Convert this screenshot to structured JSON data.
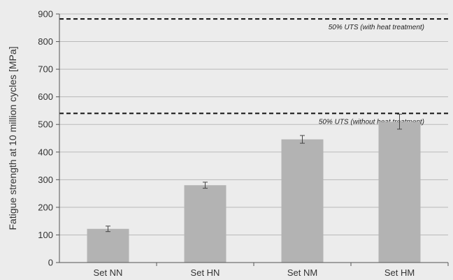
{
  "chart_data": {
    "type": "bar",
    "title": "",
    "xlabel": "",
    "ylabel": "Fatigue strength at 10 million cycles [MPa]",
    "ylim": [
      0,
      900
    ],
    "yticks": [
      0,
      100,
      200,
      300,
      400,
      500,
      600,
      700,
      800,
      900
    ],
    "grid": true,
    "categories": [
      "Set NN",
      "Set HN",
      "Set NM",
      "Set HM"
    ],
    "values": [
      122,
      280,
      446,
      510
    ],
    "errors": [
      10,
      11,
      14,
      27
    ],
    "colors": {
      "bar": "#b3b3b3",
      "reference_line": "#111111",
      "grid": "#b9b9b9"
    },
    "reference_lines": [
      {
        "label": "50% UTS (with heat treatment)",
        "value": 882
      },
      {
        "label": "50% UTS (without heat treatment)",
        "value": 540
      }
    ]
  }
}
